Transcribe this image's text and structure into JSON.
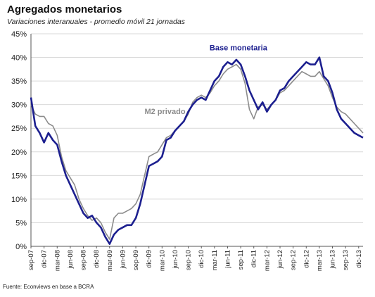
{
  "title": "Agregados monetarios",
  "subtitle": "Variaciones interanuales - promedio móvil 21 jornadas",
  "source": "Fuente: Econviews en base a BCRA",
  "colors": {
    "base": "#1c1f8f",
    "m2": "#8c8c8c",
    "grid": "#d9d9d9",
    "axis": "#555555"
  },
  "chart_data": {
    "type": "line",
    "title": "Agregados monetarios",
    "subtitle": "Variaciones interanuales - promedio móvil 21 jornadas",
    "xlabel": "",
    "ylabel": "",
    "ylim": [
      0,
      45
    ],
    "yticks": [
      "0%",
      "5%",
      "10%",
      "15%",
      "20%",
      "25%",
      "30%",
      "35%",
      "40%",
      "45%"
    ],
    "grid": "horizontal",
    "legend": "inline labels",
    "x_ticks": [
      "sep-07",
      "dic-07",
      "mar-08",
      "jun-08",
      "sep-08",
      "dic-08",
      "mar-09",
      "jun-09",
      "sep-09",
      "dic-09",
      "mar-10",
      "jun-10",
      "sep-10",
      "dic-10",
      "mar-11",
      "jun-11",
      "sep-11",
      "dic-11",
      "mar-12",
      "jun-12",
      "sep-12",
      "dic-12",
      "mar-13",
      "jun-13",
      "sep-13",
      "dic-13"
    ],
    "x_months": [
      "sep-07",
      "oct-07",
      "nov-07",
      "dic-07",
      "ene-08",
      "feb-08",
      "mar-08",
      "abr-08",
      "may-08",
      "jun-08",
      "jul-08",
      "ago-08",
      "sep-08",
      "oct-08",
      "nov-08",
      "dic-08",
      "ene-09",
      "feb-09",
      "mar-09",
      "abr-09",
      "may-09",
      "jun-09",
      "jul-09",
      "ago-09",
      "sep-09",
      "oct-09",
      "nov-09",
      "dic-09",
      "ene-10",
      "feb-10",
      "mar-10",
      "abr-10",
      "may-10",
      "jun-10",
      "jul-10",
      "ago-10",
      "sep-10",
      "oct-10",
      "nov-10",
      "dic-10",
      "ene-11",
      "feb-11",
      "mar-11",
      "abr-11",
      "may-11",
      "jun-11",
      "jul-11",
      "ago-11",
      "sep-11",
      "oct-11",
      "nov-11",
      "dic-11",
      "ene-12",
      "feb-12",
      "mar-12",
      "abr-12",
      "may-12",
      "jun-12",
      "jul-12",
      "ago-12",
      "sep-12",
      "oct-12",
      "nov-12",
      "dic-12",
      "ene-13",
      "feb-13",
      "mar-13",
      "abr-13",
      "may-13",
      "jun-13",
      "jul-13",
      "ago-13",
      "sep-13",
      "oct-13",
      "nov-13",
      "dic-13",
      "ene-14"
    ],
    "series": [
      {
        "name": "Base monetaria",
        "values": [
          31.5,
          25.5,
          24.0,
          22.0,
          24.0,
          22.5,
          21.5,
          18.0,
          15.0,
          13.0,
          11.0,
          9.0,
          7.0,
          6.0,
          6.5,
          5.0,
          4.0,
          2.0,
          0.5,
          2.5,
          3.5,
          4.0,
          4.5,
          4.5,
          6.0,
          9.0,
          13.0,
          17.0,
          17.5,
          18.0,
          19.0,
          22.5,
          23.0,
          24.5,
          25.5,
          26.5,
          28.5,
          30.0,
          31.0,
          31.5,
          31.0,
          33.0,
          35.0,
          36.0,
          38.0,
          39.0,
          38.5,
          39.5,
          38.5,
          36.0,
          33.0,
          31.0,
          29.0,
          30.5,
          28.5,
          30.0,
          31.0,
          33.0,
          33.5,
          35.0,
          36.0,
          37.0,
          38.0,
          39.0,
          38.5,
          38.5,
          40.0,
          36.0,
          35.0,
          32.5,
          29.0,
          27.0,
          26.0,
          25.0,
          24.0,
          23.5,
          23.0
        ]
      },
      {
        "name": "M2 privado",
        "values": [
          30.0,
          28.0,
          27.5,
          27.5,
          26.0,
          25.5,
          23.5,
          19.0,
          16.0,
          14.5,
          13.0,
          10.0,
          8.0,
          6.5,
          5.5,
          6.0,
          5.0,
          3.0,
          1.5,
          6.0,
          7.0,
          7.0,
          7.5,
          8.0,
          9.0,
          11.0,
          15.0,
          19.0,
          19.5,
          20.0,
          21.5,
          23.0,
          23.5,
          24.5,
          25.5,
          26.5,
          28.0,
          30.5,
          31.5,
          32.0,
          31.5,
          32.5,
          34.0,
          35.0,
          36.5,
          37.5,
          38.0,
          38.5,
          37.5,
          34.5,
          29.0,
          27.0,
          29.5,
          30.0,
          29.0,
          30.0,
          31.0,
          32.5,
          33.0,
          34.0,
          35.0,
          36.0,
          37.0,
          36.5,
          36.0,
          36.0,
          37.0,
          35.5,
          34.0,
          31.5,
          29.5,
          28.5,
          28.0,
          27.0,
          26.0,
          25.0,
          24.0
        ]
      }
    ],
    "annotations": [
      "Base monetaria",
      "M2 privado"
    ]
  }
}
